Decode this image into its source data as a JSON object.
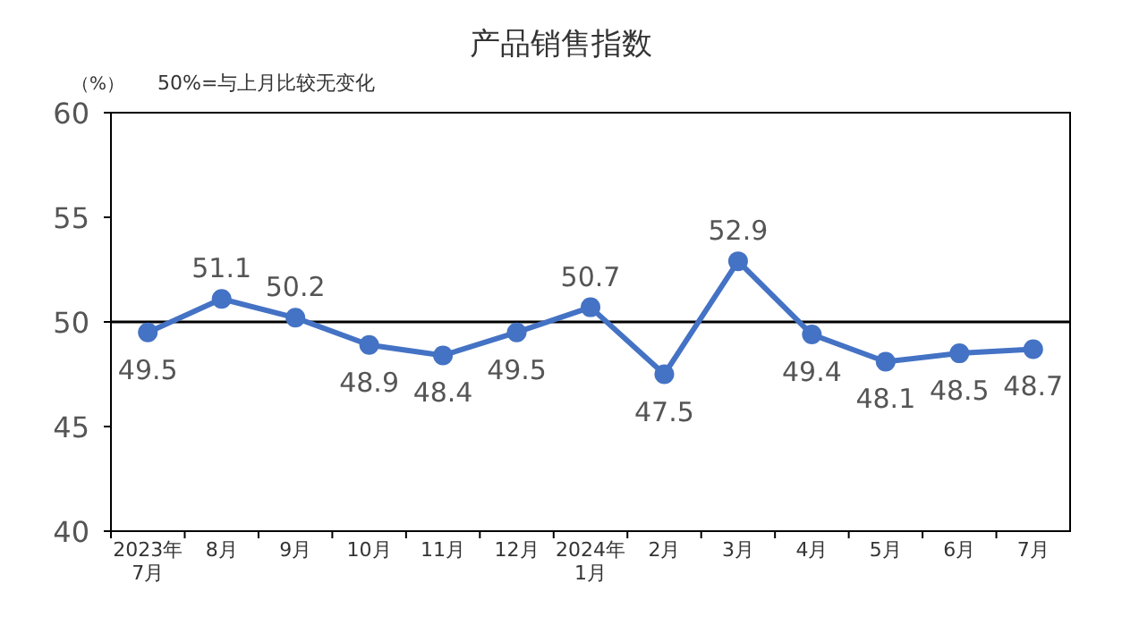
{
  "chart_data": {
    "type": "line",
    "title": "产品销售指数",
    "ylabel": "（%）",
    "annotations": [
      "50%=与上月比较无变化"
    ],
    "categories": [
      "2023年\n7月",
      "8月",
      "9月",
      "10月",
      "11月",
      "12月",
      "2024年\n1月",
      "2月",
      "3月",
      "4月",
      "5月",
      "6月",
      "7月"
    ],
    "series": [
      {
        "color": "#4472c4",
        "values": [
          49.5,
          51.1,
          50.2,
          48.9,
          48.4,
          49.5,
          50.7,
          47.5,
          52.9,
          49.4,
          48.1,
          48.5,
          48.7
        ]
      }
    ],
    "ylim": [
      40,
      60
    ],
    "yticks": [
      40,
      45,
      50,
      55,
      60
    ],
    "ref_lines": [
      {
        "axis": "y",
        "value": 50,
        "color": "#000000"
      }
    ],
    "data_labels": true,
    "marker": "circle",
    "line_style": "solid",
    "grid": false
  }
}
